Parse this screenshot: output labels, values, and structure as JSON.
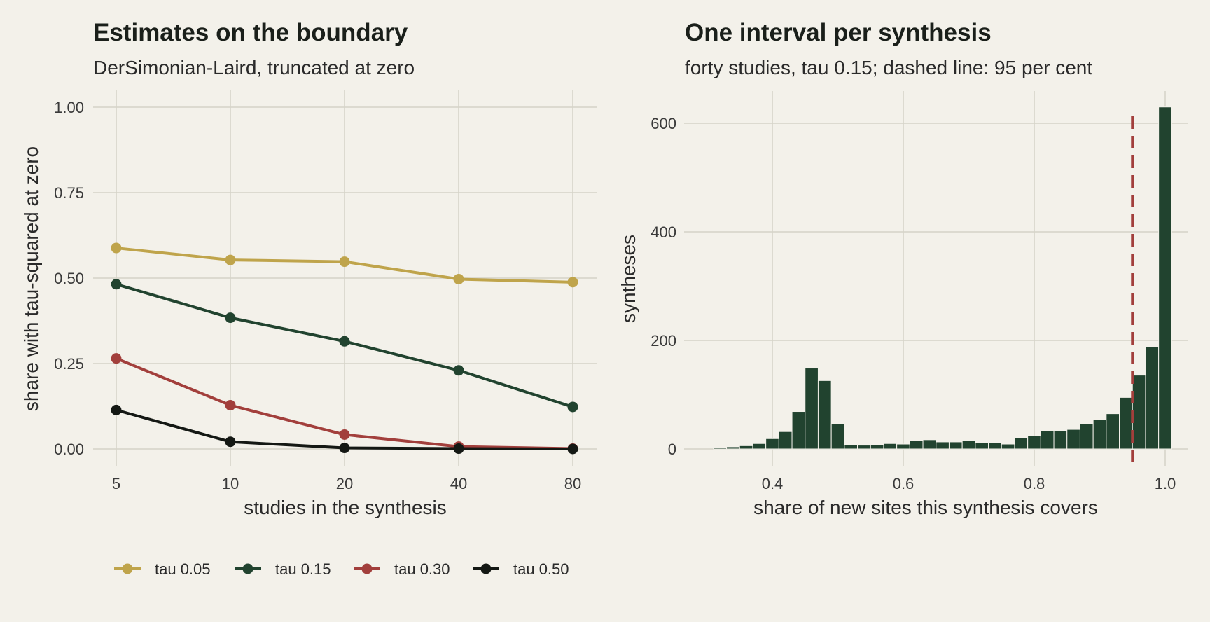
{
  "chart_data": [
    {
      "type": "line",
      "title": "Estimates on the boundary",
      "subtitle": "DerSimonian-Laird, truncated at zero",
      "xlabel": "studies in the synthesis",
      "ylabel": "share with tau-squared at zero",
      "x_scale": "log2",
      "categories": [
        "5",
        "10",
        "20",
        "40",
        "80"
      ],
      "x": [
        5,
        10,
        20,
        40,
        80
      ],
      "ylim": [
        0,
        1
      ],
      "yticks": [
        "0.00",
        "0.25",
        "0.50",
        "0.75",
        "1.00"
      ],
      "ytick_values": [
        0,
        0.25,
        0.5,
        0.75,
        1.0
      ],
      "grid": true,
      "legend_position": "bottom",
      "series": [
        {
          "name": "tau 0.05",
          "color": "#bfa44b",
          "values": [
            0.588,
            0.553,
            0.548,
            0.497,
            0.488
          ]
        },
        {
          "name": "tau 0.15",
          "color": "#21432f",
          "values": [
            0.482,
            0.384,
            0.315,
            0.23,
            0.123
          ]
        },
        {
          "name": "tau 0.30",
          "color": "#a23f3c",
          "values": [
            0.265,
            0.128,
            0.042,
            0.007,
            0.001
          ]
        },
        {
          "name": "tau 0.50",
          "color": "#141814",
          "values": [
            0.114,
            0.021,
            0.003,
            0.001,
            0.0
          ]
        }
      ]
    },
    {
      "type": "bar",
      "subtype": "histogram",
      "title": "One interval per synthesis",
      "subtitle": "forty studies, tau 0.15; dashed line: 95 per cent",
      "xlabel": "share of new sites this synthesis covers",
      "ylabel": "syntheses",
      "xlim": [
        0.29,
        1.05
      ],
      "ylim": [
        -25,
        660
      ],
      "xticks": [
        "0.4",
        "0.6",
        "0.8",
        "1.0"
      ],
      "xtick_values": [
        0.4,
        0.6,
        0.8,
        1.0
      ],
      "yticks": [
        "0",
        "200",
        "400",
        "600"
      ],
      "ytick_values": [
        0,
        200,
        400,
        600
      ],
      "grid": true,
      "bar_color": "#21432f",
      "bin_width": 0.02,
      "bin_starts": [
        0.31,
        0.33,
        0.35,
        0.37,
        0.39,
        0.41,
        0.43,
        0.45,
        0.47,
        0.49,
        0.51,
        0.53,
        0.55,
        0.57,
        0.59,
        0.61,
        0.63,
        0.65,
        0.67,
        0.69,
        0.71,
        0.73,
        0.75,
        0.77,
        0.79,
        0.81,
        0.83,
        0.85,
        0.87,
        0.89,
        0.91,
        0.93,
        0.95,
        0.97,
        0.99
      ],
      "counts": [
        2,
        4,
        6,
        10,
        19,
        32,
        69,
        149,
        126,
        46,
        8,
        7,
        8,
        10,
        9,
        15,
        17,
        13,
        13,
        16,
        12,
        12,
        9,
        21,
        24,
        34,
        33,
        36,
        47,
        54,
        65,
        95,
        136,
        189,
        630
      ],
      "reference_line": {
        "x": 0.95,
        "style": "dashed",
        "color": "#a23f3c"
      }
    }
  ]
}
